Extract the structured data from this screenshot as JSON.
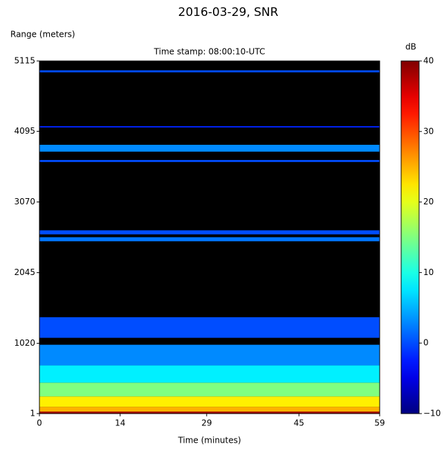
{
  "chart_data": {
    "type": "heatmap",
    "title": "2016-03-29, SNR",
    "subtitle": "Time stamp: 08:00:10-UTC",
    "y_label": "Range (meters)",
    "x_label": "Time (minutes)",
    "colorbar_label": "dB",
    "xlim": [
      0,
      59
    ],
    "xticks": [
      0,
      14,
      29,
      45,
      59
    ],
    "ylim": [
      1,
      5115
    ],
    "yticks": [
      1,
      1020,
      2045,
      3070,
      4095,
      5115
    ],
    "clim": [
      -10,
      40
    ],
    "cticks": [
      {
        "value": -10,
        "label": "−10"
      },
      0,
      10,
      20,
      30,
      40
    ],
    "colormap": "jet",
    "range_bins": [
      1,
      30,
      100,
      250,
      450,
      700,
      1000,
      1100,
      1400,
      2500,
      2560,
      2600,
      2660,
      3650,
      3680,
      3800,
      3900,
      4150,
      4170,
      4950,
      4980,
      5115
    ],
    "values": [
      38,
      25,
      22,
      15,
      8,
      3,
      -10,
      0,
      -10,
      2,
      -10,
      0,
      -10,
      0,
      -10,
      3,
      -10,
      -2,
      -10,
      0,
      -10
    ]
  }
}
